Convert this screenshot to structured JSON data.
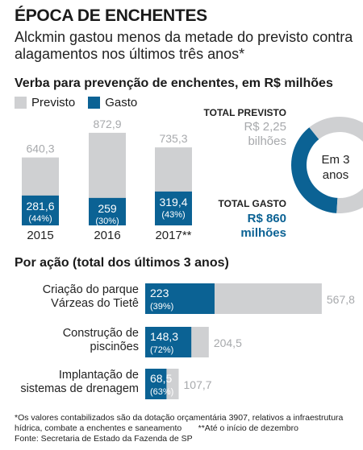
{
  "header": {
    "title": "ÉPOCA DE ENCHENTES",
    "subtitle": "Alckmin gastou menos da metade do previsto contra alagamentos nos últimos três anos*"
  },
  "colors": {
    "previsto": "#cfd0d2",
    "gasto": "#0b6294",
    "accent_text": "#0b6294"
  },
  "chart_data": [
    {
      "type": "bar",
      "title": "Verba para prevenção de enchentes, em R$ milhões",
      "legend": [
        "Previsto",
        "Gasto"
      ],
      "categories": [
        "2015",
        "2016",
        "2017**"
      ],
      "series": [
        {
          "name": "Previsto",
          "values": [
            640.3,
            872.9,
            735.3
          ],
          "labels": [
            "640,3",
            "872,9",
            "735,3"
          ]
        },
        {
          "name": "Gasto",
          "values": [
            281.6,
            259,
            319.4
          ],
          "labels": [
            "281,6",
            "259",
            "319,4"
          ],
          "pct": [
            "(44%)",
            "(30%)",
            "(43%)"
          ]
        }
      ]
    },
    {
      "type": "pie",
      "center_label": [
        "Em 3",
        "anos"
      ],
      "total_previsto": {
        "label": "TOTAL PREVISTO",
        "value_lines": [
          "R$ 2,25",
          "bilhões"
        ],
        "value": 2250
      },
      "total_gasto": {
        "label": "TOTAL GASTO",
        "value_lines": [
          "R$ 860",
          "milhões"
        ],
        "value": 860
      }
    },
    {
      "type": "bar",
      "orientation": "horizontal",
      "title": "Por ação (total dos últimos 3 anos)",
      "categories": [
        [
          "Criação do parque",
          "Várzeas do Tietê"
        ],
        [
          "Construção de",
          "piscinões"
        ],
        [
          "Implantação de",
          "sistemas de drenagem"
        ]
      ],
      "series": [
        {
          "name": "Previsto",
          "values": [
            567.8,
            204.5,
            107.7
          ],
          "labels": [
            "567,8",
            "204,5",
            "107,7"
          ]
        },
        {
          "name": "Gasto",
          "values": [
            223,
            148.3,
            68.5
          ],
          "labels": [
            "223",
            "148,3",
            "68,5"
          ],
          "pct": [
            "(39%)",
            "(72%)",
            "(63%)"
          ]
        }
      ]
    }
  ],
  "footnotes": [
    "*Os valores contabilizados são da dotação orçamentária 3907, relativos a infraestrutura",
    "hídrica, combate a enchentes e saneamento       **Até o início de dezembro",
    "Fonte: Secretaria de Estado da Fazenda de SP"
  ]
}
